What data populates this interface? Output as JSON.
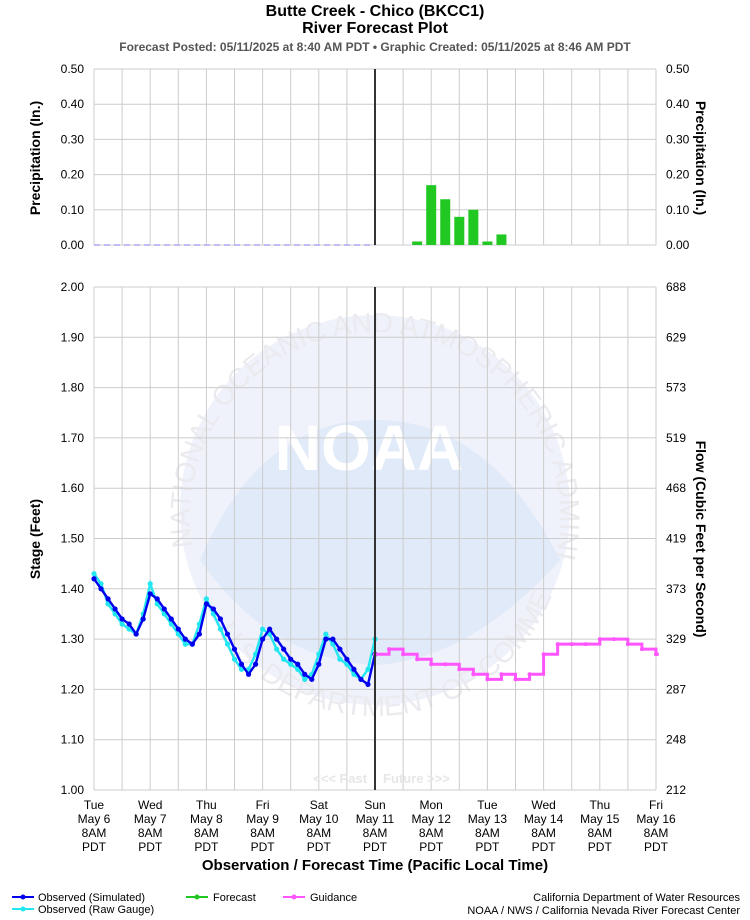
{
  "header": {
    "title": "Butte Creek - Chico (BKCC1)",
    "subtitle": "River Forecast Plot",
    "posted": "Forecast Posted: 05/11/2025 at 8:40 AM PDT  •  Graphic Created: 05/11/2025 at 8:46 AM PDT"
  },
  "colors": {
    "observed_simulated": "#0000ee",
    "observed_raw": "#22e6f0",
    "forecast": "#22c822",
    "guidance": "#ff55ff",
    "grid": "#cccccc",
    "now_line": "#333333"
  },
  "watermark": {
    "logo_text": "NOAA",
    "ring_text_top": "NATIONAL OCEANIC AND ATMOSPHERIC ADMINISTRATION",
    "ring_text_bottom": "U.S. DEPARTMENT OF COMMERCE"
  },
  "chart_data": [
    {
      "type": "bar",
      "name": "precipitation",
      "ylabel_left": "Precipitation (In.)",
      "ylabel_right": "Precipitation (In.)",
      "ylim": [
        0,
        0.5
      ],
      "yticks": [
        "0.00",
        "0.10",
        "0.20",
        "0.30",
        "0.40",
        "0.50"
      ],
      "observed_zero_from_day": 0,
      "observed_zero_to_day": 5,
      "forecast_bars": [
        {
          "day": 5.75,
          "value": 0.01
        },
        {
          "day": 6.0,
          "value": 0.17
        },
        {
          "day": 6.25,
          "value": 0.13
        },
        {
          "day": 6.5,
          "value": 0.08
        },
        {
          "day": 6.75,
          "value": 0.1
        },
        {
          "day": 7.0,
          "value": 0.01
        },
        {
          "day": 7.25,
          "value": 0.03
        }
      ]
    },
    {
      "type": "line",
      "name": "stage",
      "ylabel_left": "Stage (Feet)",
      "ylabel_right": "Flow (Cubic Feet per Second)",
      "ylim": [
        1.0,
        2.0
      ],
      "yticks_left": [
        "1.00",
        "1.10",
        "1.20",
        "1.30",
        "1.40",
        "1.50",
        "1.60",
        "1.70",
        "1.80",
        "1.90",
        "2.00"
      ],
      "yticks_right": [
        "212",
        "248",
        "287",
        "329",
        "373",
        "419",
        "468",
        "519",
        "573",
        "629",
        "688"
      ],
      "xlabel": "Observation / Forecast Time (Pacific Local Time)",
      "x_ticks": [
        [
          "Tue",
          "May 6",
          "8AM",
          "PDT"
        ],
        [
          "Wed",
          "May 7",
          "8AM",
          "PDT"
        ],
        [
          "Thu",
          "May 8",
          "8AM",
          "PDT"
        ],
        [
          "Fri",
          "May 9",
          "8AM",
          "PDT"
        ],
        [
          "Sat",
          "May 10",
          "8AM",
          "PDT"
        ],
        [
          "Sun",
          "May 11",
          "8AM",
          "PDT"
        ],
        [
          "Mon",
          "May 12",
          "8AM",
          "PDT"
        ],
        [
          "Tue",
          "May 13",
          "8AM",
          "PDT"
        ],
        [
          "Wed",
          "May 14",
          "8AM",
          "PDT"
        ],
        [
          "Thu",
          "May 15",
          "8AM",
          "PDT"
        ],
        [
          "Fri",
          "May 16",
          "8AM",
          "PDT"
        ]
      ],
      "past_label": "<<< Past",
      "future_label": "Future >>>",
      "now_day": 5.0,
      "series": [
        {
          "name": "Observed (Simulated)",
          "points": [
            [
              0,
              1.42
            ],
            [
              0.125,
              1.4
            ],
            [
              0.25,
              1.38
            ],
            [
              0.375,
              1.36
            ],
            [
              0.5,
              1.34
            ],
            [
              0.625,
              1.33
            ],
            [
              0.75,
              1.31
            ],
            [
              0.875,
              1.34
            ],
            [
              1.0,
              1.39
            ],
            [
              1.125,
              1.38
            ],
            [
              1.25,
              1.36
            ],
            [
              1.375,
              1.34
            ],
            [
              1.5,
              1.32
            ],
            [
              1.625,
              1.3
            ],
            [
              1.75,
              1.29
            ],
            [
              1.875,
              1.31
            ],
            [
              2.0,
              1.37
            ],
            [
              2.125,
              1.36
            ],
            [
              2.25,
              1.34
            ],
            [
              2.375,
              1.31
            ],
            [
              2.5,
              1.28
            ],
            [
              2.625,
              1.25
            ],
            [
              2.75,
              1.23
            ],
            [
              2.875,
              1.25
            ],
            [
              3.0,
              1.3
            ],
            [
              3.125,
              1.32
            ],
            [
              3.25,
              1.3
            ],
            [
              3.375,
              1.28
            ],
            [
              3.5,
              1.26
            ],
            [
              3.625,
              1.25
            ],
            [
              3.75,
              1.23
            ],
            [
              3.875,
              1.22
            ],
            [
              4.0,
              1.25
            ],
            [
              4.125,
              1.3
            ],
            [
              4.25,
              1.3
            ],
            [
              4.375,
              1.28
            ],
            [
              4.5,
              1.26
            ],
            [
              4.625,
              1.24
            ],
            [
              4.75,
              1.22
            ],
            [
              4.875,
              1.21
            ],
            [
              5.0,
              1.27
            ]
          ]
        },
        {
          "name": "Observed (Raw Gauge)",
          "points": [
            [
              0,
              1.43
            ],
            [
              0.125,
              1.41
            ],
            [
              0.25,
              1.37
            ],
            [
              0.375,
              1.35
            ],
            [
              0.5,
              1.33
            ],
            [
              0.625,
              1.32
            ],
            [
              0.75,
              1.31
            ],
            [
              0.875,
              1.35
            ],
            [
              1.0,
              1.41
            ],
            [
              1.125,
              1.37
            ],
            [
              1.25,
              1.35
            ],
            [
              1.375,
              1.33
            ],
            [
              1.5,
              1.31
            ],
            [
              1.625,
              1.29
            ],
            [
              1.75,
              1.29
            ],
            [
              1.875,
              1.33
            ],
            [
              2.0,
              1.38
            ],
            [
              2.125,
              1.35
            ],
            [
              2.25,
              1.32
            ],
            [
              2.375,
              1.29
            ],
            [
              2.5,
              1.26
            ],
            [
              2.625,
              1.24
            ],
            [
              2.75,
              1.24
            ],
            [
              2.875,
              1.27
            ],
            [
              3.0,
              1.32
            ],
            [
              3.125,
              1.31
            ],
            [
              3.25,
              1.28
            ],
            [
              3.375,
              1.26
            ],
            [
              3.5,
              1.25
            ],
            [
              3.625,
              1.24
            ],
            [
              3.75,
              1.22
            ],
            [
              3.875,
              1.23
            ],
            [
              4.0,
              1.27
            ],
            [
              4.125,
              1.31
            ],
            [
              4.25,
              1.29
            ],
            [
              4.375,
              1.26
            ],
            [
              4.5,
              1.25
            ],
            [
              4.625,
              1.23
            ],
            [
              4.75,
              1.22
            ],
            [
              4.875,
              1.24
            ],
            [
              5.0,
              1.3
            ]
          ]
        },
        {
          "name": "Forecast",
          "points": []
        },
        {
          "name": "Guidance",
          "points": [
            [
              5.0,
              1.27
            ],
            [
              5.25,
              1.28
            ],
            [
              5.5,
              1.27
            ],
            [
              5.75,
              1.26
            ],
            [
              6.0,
              1.25
            ],
            [
              6.25,
              1.25
            ],
            [
              6.5,
              1.24
            ],
            [
              6.75,
              1.23
            ],
            [
              7.0,
              1.22
            ],
            [
              7.25,
              1.23
            ],
            [
              7.5,
              1.22
            ],
            [
              7.75,
              1.23
            ],
            [
              8.0,
              1.27
            ],
            [
              8.25,
              1.29
            ],
            [
              8.5,
              1.29
            ],
            [
              8.75,
              1.29
            ],
            [
              9.0,
              1.3
            ],
            [
              9.25,
              1.3
            ],
            [
              9.5,
              1.29
            ],
            [
              9.75,
              1.28
            ],
            [
              10.0,
              1.27
            ]
          ]
        }
      ]
    }
  ],
  "legend": {
    "observed_simulated": "Observed (Simulated)",
    "observed_raw": "Observed (Raw Gauge)",
    "forecast": "Forecast",
    "guidance": "Guidance"
  },
  "credits": {
    "line1": "California Department of Water Resources",
    "line2": "NOAA / NWS / California Nevada River Forecast Center"
  }
}
